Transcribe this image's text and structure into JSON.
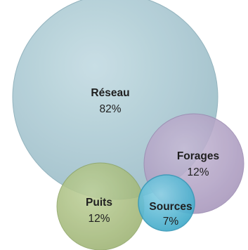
{
  "chart_data": {
    "type": "bubble",
    "series": [
      {
        "name": "Réseau",
        "value": 82,
        "label": "82%",
        "color": "#a9c7d0"
      },
      {
        "name": "Forages",
        "value": 12,
        "label": "12%",
        "color": "#b3a4c4"
      },
      {
        "name": "Puits",
        "value": 12,
        "label": "12%",
        "color": "#a9bd7e"
      },
      {
        "name": "Sources",
        "value": 7,
        "label": "7%",
        "color": "#55b9d6"
      }
    ]
  }
}
